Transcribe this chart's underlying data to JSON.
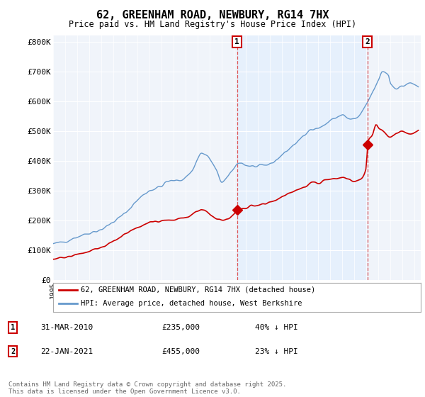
{
  "title": "62, GREENHAM ROAD, NEWBURY, RG14 7HX",
  "subtitle": "Price paid vs. HM Land Registry's House Price Index (HPI)",
  "ylabel_ticks": [
    "£0",
    "£100K",
    "£200K",
    "£300K",
    "£400K",
    "£500K",
    "£600K",
    "£700K",
    "£800K"
  ],
  "ytick_values": [
    0,
    100000,
    200000,
    300000,
    400000,
    500000,
    600000,
    700000,
    800000
  ],
  "ylim": [
    0,
    820000
  ],
  "xlim_start": 1995.0,
  "xlim_end": 2025.5,
  "hpi_color": "#6699cc",
  "hpi_fill_color": "#ddeeff",
  "price_color": "#cc0000",
  "marker1_x": 2010.25,
  "marker1_y": 235000,
  "marker2_x": 2021.07,
  "marker2_y": 455000,
  "vline_color": "#dd4444",
  "annotation_box_color": "#cc0000",
  "footer": "Contains HM Land Registry data © Crown copyright and database right 2025.\nThis data is licensed under the Open Government Licence v3.0.",
  "legend1_label": "62, GREENHAM ROAD, NEWBURY, RG14 7HX (detached house)",
  "legend2_label": "HPI: Average price, detached house, West Berkshire",
  "note1_date": "31-MAR-2010",
  "note1_price": "£235,000",
  "note1_hpi": "40% ↓ HPI",
  "note2_date": "22-JAN-2021",
  "note2_price": "£455,000",
  "note2_hpi": "23% ↓ HPI",
  "chart_bg": "#f0f4fa",
  "grid_color": "#ffffff",
  "fig_bg": "#ffffff"
}
